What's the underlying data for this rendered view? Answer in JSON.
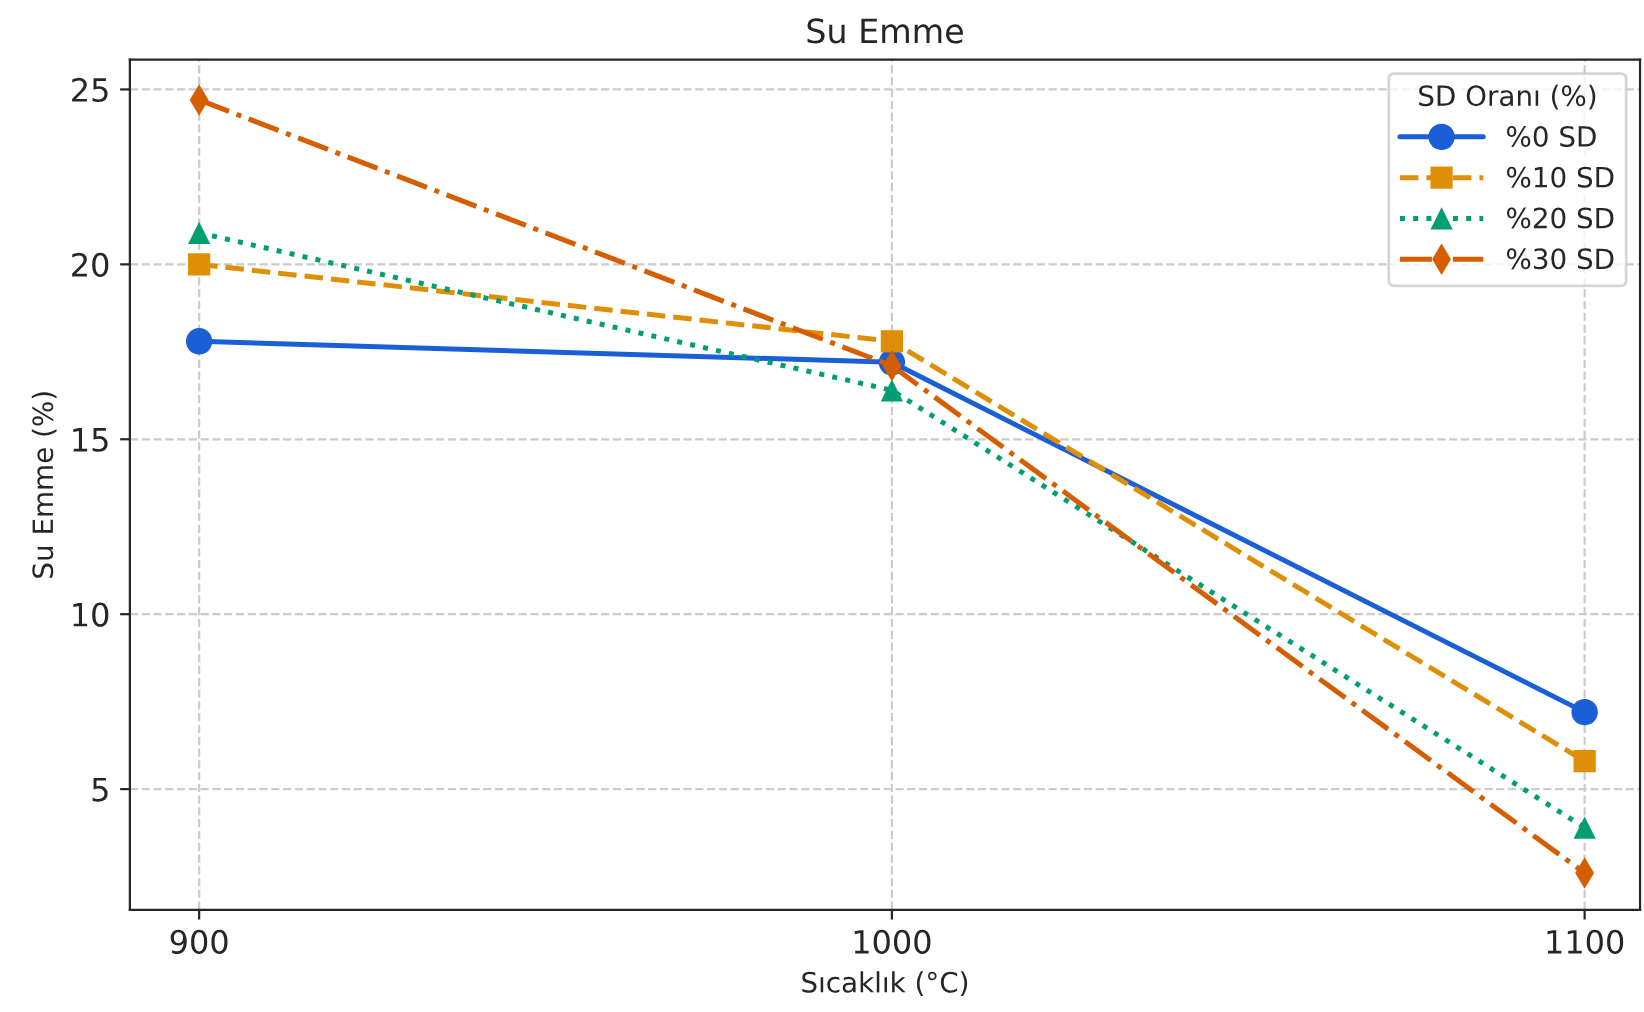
{
  "chart_data": {
    "type": "line",
    "title": "Su Emme",
    "xlabel": "Sıcaklık (°C)",
    "ylabel": "Su Emme (%)",
    "legend_title": "SD Oranı (%)",
    "x": [
      900,
      1000,
      1100
    ],
    "series": [
      {
        "name": "%0 SD",
        "color": "#1a5fd6",
        "values": [
          17.8,
          17.2,
          7.2
        ],
        "marker": "circle",
        "line_style": "solid"
      },
      {
        "name": "%10 SD",
        "color": "#de8f05",
        "values": [
          20.0,
          17.8,
          5.8
        ],
        "marker": "square",
        "line_style": "dashed"
      },
      {
        "name": "%20 SD",
        "color": "#029e73",
        "values": [
          20.9,
          16.4,
          3.9
        ],
        "marker": "triangle",
        "line_style": "dotted"
      },
      {
        "name": "%30 SD",
        "color": "#d55e00",
        "values": [
          24.7,
          17.1,
          2.6
        ],
        "marker": "diamond",
        "line_style": "dashdot"
      }
    ],
    "xlim": [
      890,
      1108
    ],
    "xticks": [
      900,
      1000,
      1100
    ],
    "ylim": [
      1.55,
      25.85
    ],
    "yticks": [
      5,
      10,
      15,
      20,
      25
    ],
    "grid": true,
    "legend": "top right"
  }
}
